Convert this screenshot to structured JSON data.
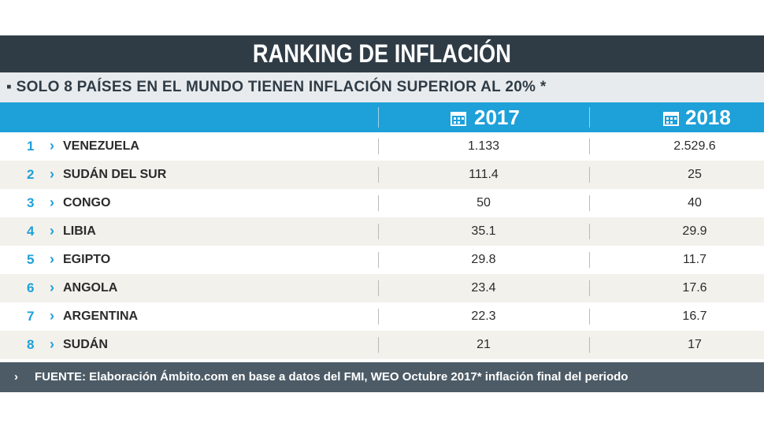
{
  "header": {
    "title": "RANKING DE INFLACIÓN",
    "subtitle": "SOLO 8 PAÍSES EN EL MUNDO TIENEN INFLACIÓN SUPERIOR AL 20% *"
  },
  "table": {
    "columns": [
      "2017",
      "2018"
    ],
    "rows": [
      {
        "rank": "1",
        "country": "VENEZUELA",
        "values": [
          "1.133",
          "2.529.6"
        ]
      },
      {
        "rank": "2",
        "country": "SUDÁN DEL SUR",
        "values": [
          "111.4",
          "25"
        ]
      },
      {
        "rank": "3",
        "country": "CONGO",
        "values": [
          "50",
          "40"
        ]
      },
      {
        "rank": "4",
        "country": "LIBIA",
        "values": [
          "35.1",
          "29.9"
        ]
      },
      {
        "rank": "5",
        "country": "EGIPTO",
        "values": [
          "29.8",
          "11.7"
        ]
      },
      {
        "rank": "6",
        "country": "ANGOLA",
        "values": [
          "23.4",
          "17.6"
        ]
      },
      {
        "rank": "7",
        "country": "ARGENTINA",
        "values": [
          "22.3",
          "16.7"
        ]
      },
      {
        "rank": "8",
        "country": "SUDÁN",
        "values": [
          "21",
          "17"
        ]
      }
    ]
  },
  "footer": {
    "source": "FUENTE: Elaboración Ámbito.com en base a datos del FMI, WEO Octubre 2017* inflación final del periodo"
  }
}
